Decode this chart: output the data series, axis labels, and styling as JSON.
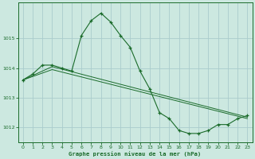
{
  "background_color": "#cce8e0",
  "grid_color": "#aacccc",
  "line_color": "#1a6b2a",
  "marker_color": "#1a6b2a",
  "title": "Graphe pression niveau de la mer (hPa)",
  "xlabel_color": "#1a6b2a",
  "xlim": [
    -0.5,
    23.5
  ],
  "ylim": [
    1011.5,
    1016.2
  ],
  "yticks": [
    1012,
    1013,
    1014,
    1015
  ],
  "xticks": [
    0,
    1,
    2,
    3,
    4,
    5,
    6,
    7,
    8,
    9,
    10,
    11,
    12,
    13,
    14,
    15,
    16,
    17,
    18,
    19,
    20,
    21,
    22,
    23
  ],
  "series": [
    {
      "x": [
        0,
        1,
        2,
        3,
        4,
        5,
        6,
        7,
        8,
        9,
        10,
        11,
        12,
        13,
        14,
        15,
        16,
        17,
        18,
        19,
        20,
        21,
        22,
        23
      ],
      "y": [
        1013.6,
        1013.8,
        1014.1,
        1014.1,
        1014.0,
        1013.9,
        1015.1,
        1015.6,
        1015.85,
        1015.55,
        1015.1,
        1014.7,
        1013.9,
        1013.3,
        1012.5,
        1012.3,
        1011.9,
        1011.8,
        1011.8,
        1011.9,
        1012.1,
        1012.1,
        1012.3,
        1012.4
      ],
      "has_markers": true
    },
    {
      "x": [
        0,
        3,
        23
      ],
      "y": [
        1013.6,
        1014.05,
        1012.35
      ],
      "has_markers": false
    },
    {
      "x": [
        0,
        3,
        23
      ],
      "y": [
        1013.6,
        1013.95,
        1012.3
      ],
      "has_markers": false
    }
  ]
}
